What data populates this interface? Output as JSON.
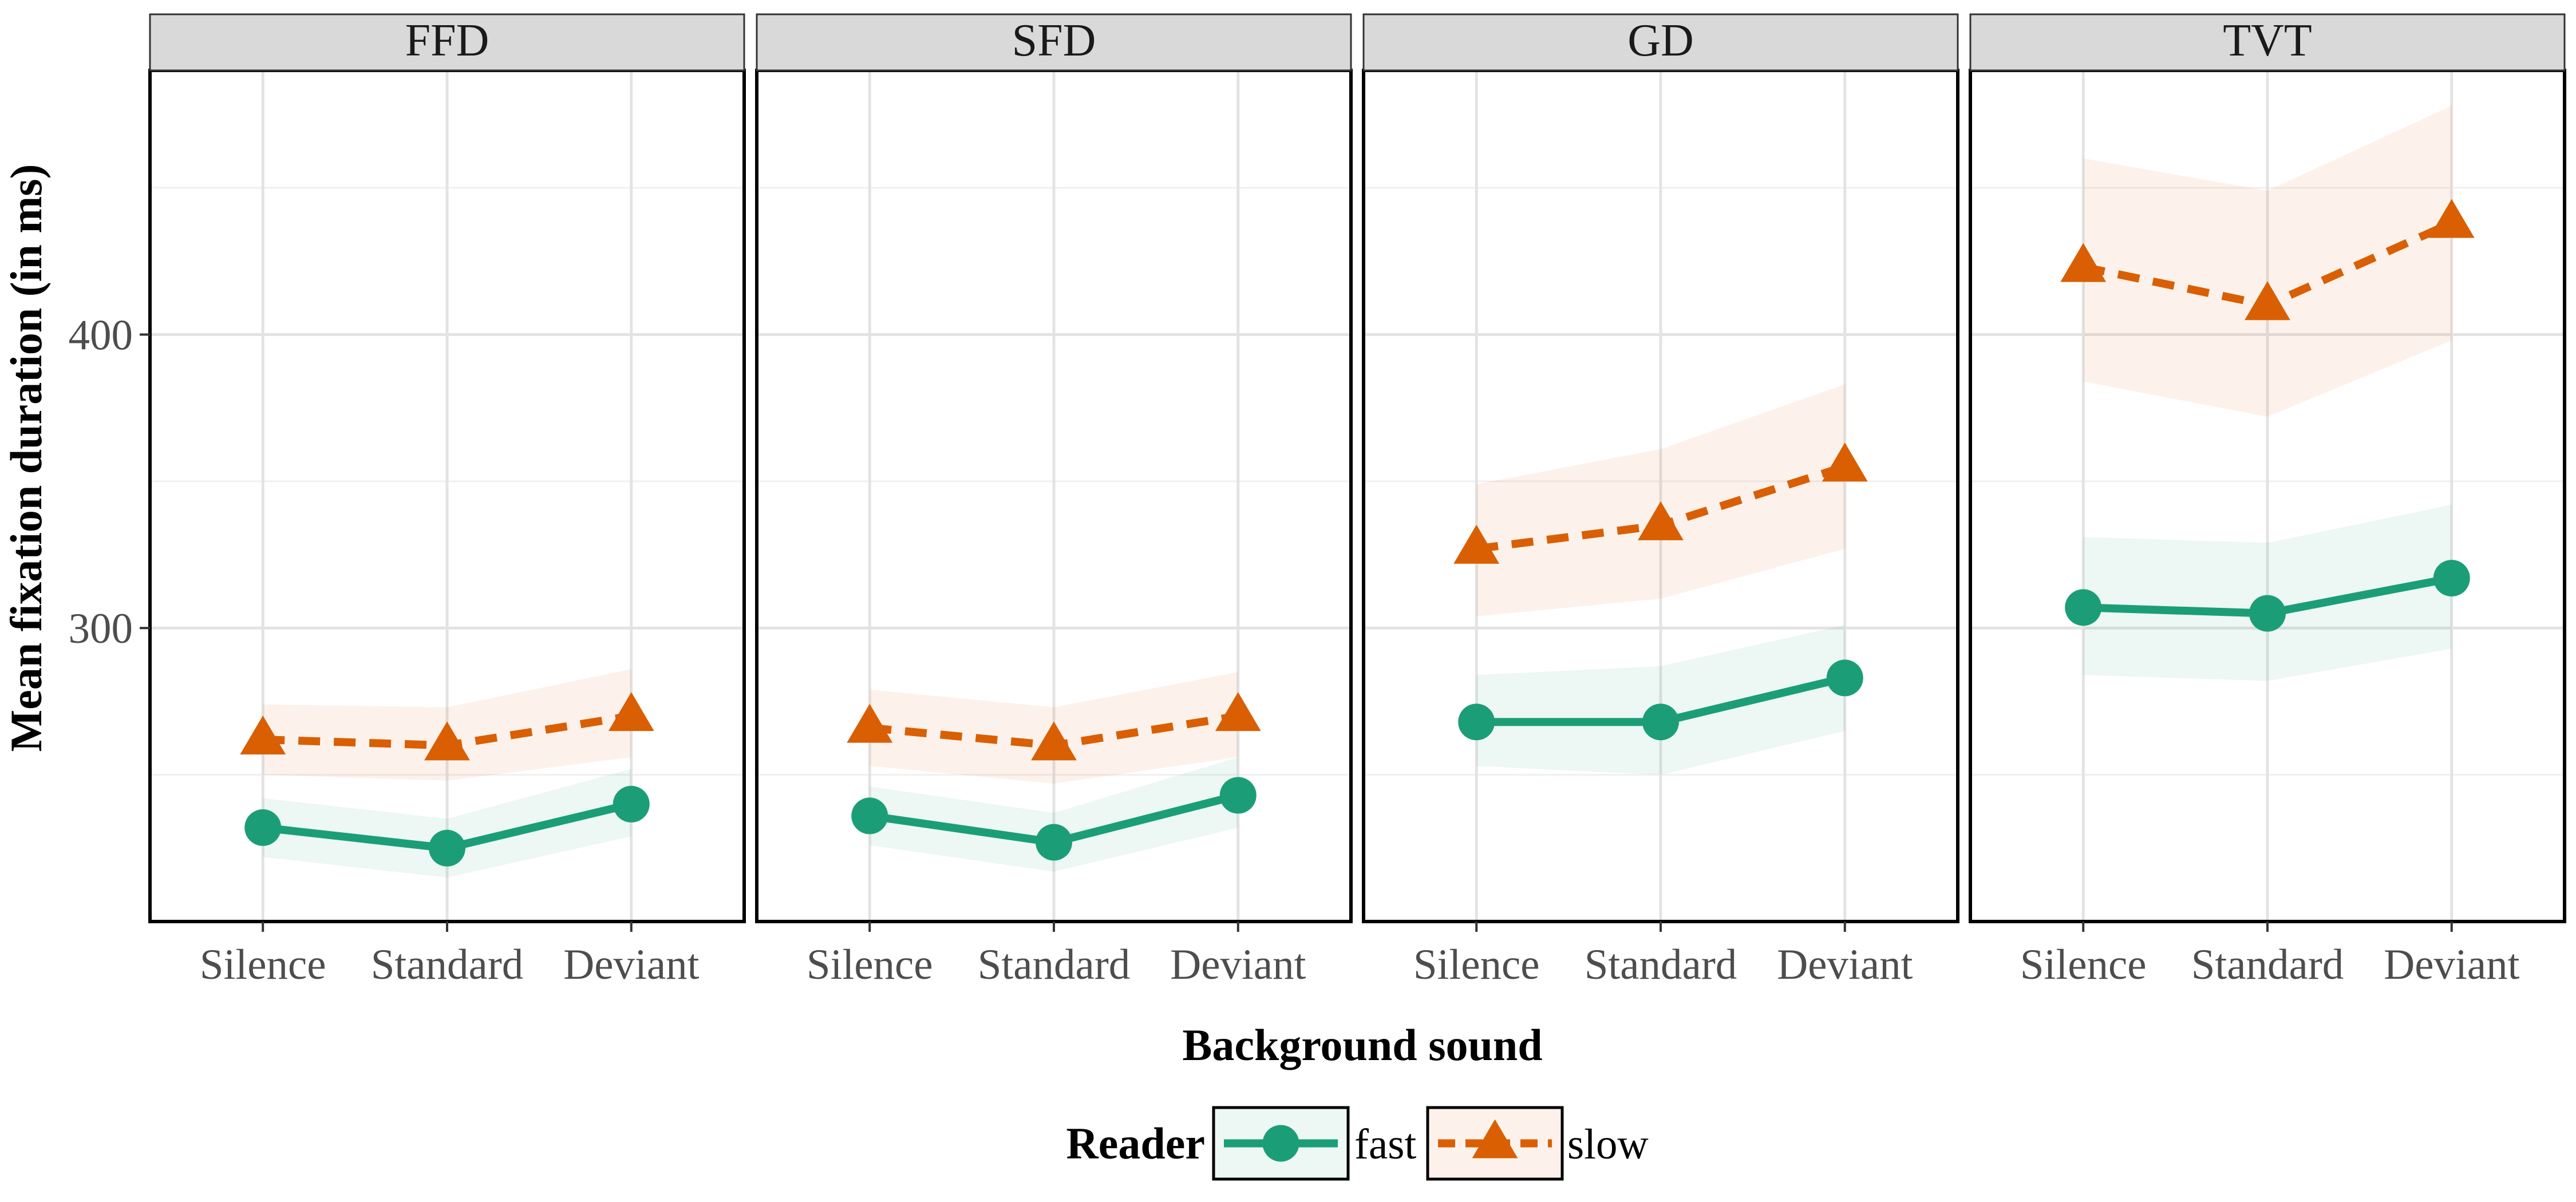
{
  "chart_data": {
    "type": "line",
    "facets": [
      "FFD",
      "SFD",
      "GD",
      "TVT"
    ],
    "categories": [
      "Silence",
      "Standard",
      "Deviant"
    ],
    "xlabel": "Background sound",
    "ylabel": "Mean fixation duration (in ms)",
    "ylim": [
      200,
      490
    ],
    "yticks": [
      300,
      400
    ],
    "y_minor_gridlines": [
      250,
      350,
      450
    ],
    "grid": true,
    "legend": {
      "title": "Reader",
      "position": "bottom",
      "entries": [
        "fast",
        "slow"
      ]
    },
    "series": [
      {
        "name": "fast",
        "color": "#1b9e77",
        "line_style": "solid",
        "marker": "circle",
        "panels": {
          "FFD": {
            "values": [
              232,
              225,
              240
            ],
            "lower": [
              222,
              215,
              229
            ],
            "upper": [
              242,
              235,
              252
            ]
          },
          "SFD": {
            "values": [
              236,
              227,
              243
            ],
            "lower": [
              226,
              217,
              232
            ],
            "upper": [
              246,
              237,
              256
            ]
          },
          "GD": {
            "values": [
              268,
              268,
              283
            ],
            "lower": [
              253,
              250,
              265
            ],
            "upper": [
              284,
              287,
              301
            ]
          },
          "TVT": {
            "values": [
              307,
              305,
              317
            ],
            "lower": [
              284,
              282,
              293
            ],
            "upper": [
              331,
              329,
              342
            ]
          }
        }
      },
      {
        "name": "slow",
        "color": "#d95f02",
        "line_style": "dashed",
        "marker": "triangle",
        "panels": {
          "FFD": {
            "values": [
              262,
              260,
              270
            ],
            "lower": [
              250,
              248,
              256
            ],
            "upper": [
              274,
              273,
              286
            ]
          },
          "SFD": {
            "values": [
              266,
              260,
              270
            ],
            "lower": [
              253,
              247,
              256
            ],
            "upper": [
              279,
              273,
              285
            ]
          },
          "GD": {
            "values": [
              327,
              335,
              355
            ],
            "lower": [
              304,
              310,
              327
            ],
            "upper": [
              349,
              361,
              383
            ]
          },
          "TVT": {
            "values": [
              423,
              410,
              438
            ],
            "lower": [
              384,
              372,
              398
            ],
            "upper": [
              460,
              449,
              478
            ]
          }
        }
      }
    ]
  }
}
